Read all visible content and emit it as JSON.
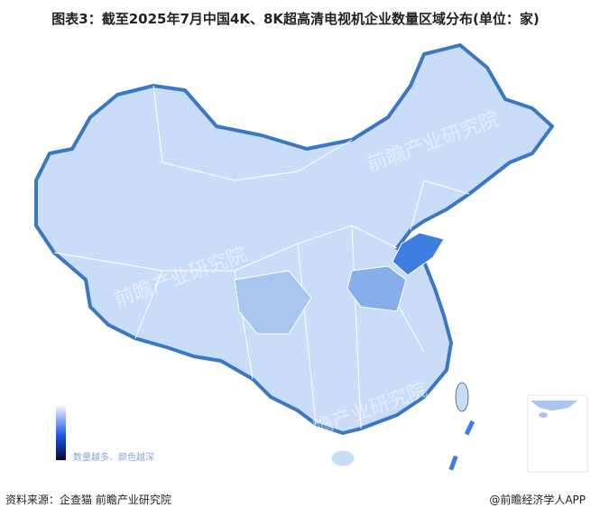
{
  "title": "图表3：截至2025年7月中国4K、8K超高清电视机企业数量区域分布(单位：家)",
  "legend": {
    "text": "数量越多、颜色越深",
    "low_color": "#f0f4ff",
    "high_color": "#050a30"
  },
  "colors": {
    "base": "#c9dcf8",
    "border": "#3a78c4",
    "level_high": "#3d7ee0",
    "level_mid": "#86aeea",
    "level_low": "#a9c6ef"
  },
  "watermark": "前瞻产业研究院",
  "source": "资料来源：企查猫 前瞻产业研究院",
  "credit": "@前瞻经济学人APP"
}
